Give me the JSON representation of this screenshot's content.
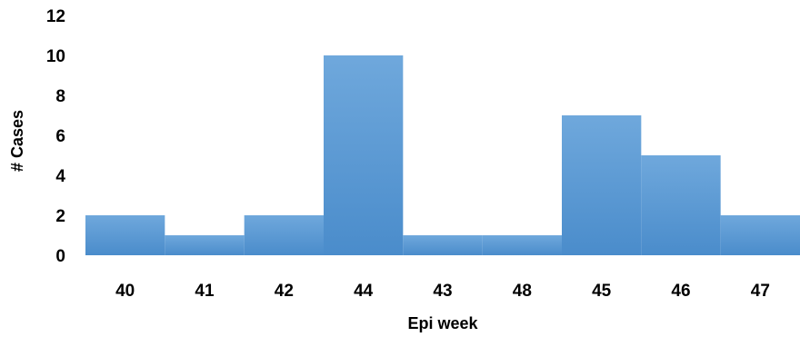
{
  "chart_data": {
    "type": "bar",
    "title": "",
    "xlabel": "Epi week",
    "ylabel": "# Cases",
    "categories": [
      "40",
      "41",
      "42",
      "44",
      "43",
      "48",
      "45",
      "46",
      "47"
    ],
    "values": [
      2,
      1,
      2,
      10,
      1,
      1,
      7,
      5,
      2
    ],
    "ylim": [
      0,
      12
    ],
    "yticks": [
      "0",
      "2",
      "4",
      "6",
      "8",
      "10",
      "12"
    ],
    "grid": false,
    "legend": "none",
    "bar_color": "#5b9bd5",
    "bar_color_top": "#6fa8dc",
    "bar_color_bottom": "#4a8ccb"
  }
}
